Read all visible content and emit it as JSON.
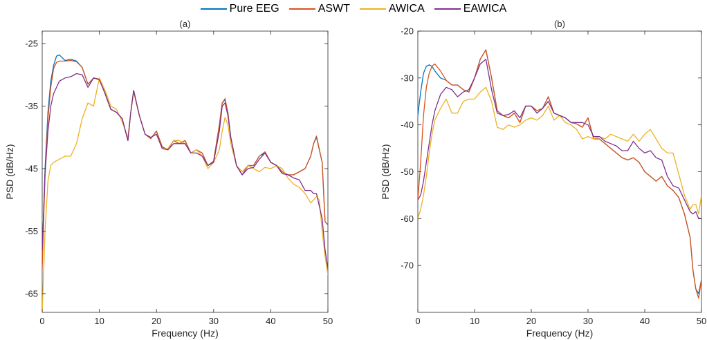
{
  "colors": {
    "pure_eeg": "#0072BD",
    "aswt": "#D95319",
    "awica": "#EDB120",
    "eawica": "#7E2F8E"
  },
  "legend": [
    "Pure EEG",
    "ASWT",
    "AWICA",
    "EAWICA"
  ],
  "chart_data": [
    {
      "type": "line",
      "title": "(a)",
      "xlabel": "Frequency (Hz)",
      "ylabel": "PSD (dB/Hz)",
      "xlim": [
        0,
        50
      ],
      "ylim": [
        -68,
        -23
      ],
      "xticks": [
        0,
        10,
        20,
        30,
        40,
        50
      ],
      "yticks": [
        -25,
        -35,
        -45,
        -55,
        -65
      ],
      "series": [
        {
          "name": "Pure EEG",
          "color_key": "pure_eeg",
          "x": [
            0,
            0.5,
            1,
            1.5,
            2,
            2.5,
            3,
            4,
            5,
            6,
            7,
            8,
            9,
            10,
            11,
            12,
            13,
            14,
            15,
            15.5,
            16,
            17,
            18,
            19,
            20,
            21,
            22,
            23,
            24,
            25,
            26,
            27,
            28,
            29,
            30,
            31,
            31.5,
            32,
            32.5,
            33,
            34,
            35,
            36,
            37,
            38,
            39,
            40,
            41,
            42,
            43,
            44,
            45,
            46,
            47,
            47.5,
            48,
            49,
            49.5,
            50
          ],
          "y": [
            -59,
            -45,
            -36,
            -31,
            -28.5,
            -27,
            -26.8,
            -27.7,
            -27.5,
            -27.8,
            -28.8,
            -31.5,
            -30.5,
            -30.7,
            -33,
            -35.5,
            -36,
            -37,
            -40.5,
            -36,
            -32.5,
            -36.5,
            -39.5,
            -40.2,
            -39,
            -41.5,
            -42,
            -40.5,
            -41,
            -40.5,
            -42.5,
            -42,
            -42.5,
            -44.5,
            -43.8,
            -38,
            -34.5,
            -34,
            -36,
            -40,
            -44.5,
            -46,
            -44.5,
            -44.5,
            -43,
            -42.5,
            -44,
            -44.5,
            -45.5,
            -46,
            -46,
            -45.5,
            -45,
            -43,
            -41,
            -40,
            -44,
            -53.5,
            -54
          ]
        },
        {
          "name": "ASWT",
          "color_key": "aswt",
          "x": [
            0,
            0.5,
            1,
            1.5,
            2,
            2.5,
            3,
            4,
            5,
            6,
            7,
            8,
            9,
            10,
            11,
            12,
            13,
            14,
            15,
            15.5,
            16,
            17,
            18,
            19,
            20,
            21,
            22,
            23,
            24,
            25,
            26,
            27,
            28,
            29,
            30,
            31,
            31.5,
            32,
            32.5,
            33,
            34,
            35,
            36,
            37,
            38,
            39,
            40,
            41,
            42,
            43,
            44,
            45,
            46,
            47,
            47.5,
            48,
            49,
            49.5,
            50
          ],
          "y": [
            -61,
            -46,
            -37,
            -32,
            -29,
            -28,
            -27.8,
            -27.8,
            -27.7,
            -27.9,
            -28.8,
            -31.5,
            -30.5,
            -30.7,
            -33,
            -35.5,
            -36,
            -37,
            -40.5,
            -36,
            -32.5,
            -36.5,
            -39.5,
            -40.2,
            -39,
            -41.5,
            -42,
            -40.5,
            -41,
            -40.5,
            -42.5,
            -42,
            -42.5,
            -44.5,
            -43.8,
            -38,
            -34.5,
            -33.8,
            -36,
            -40,
            -44.5,
            -46,
            -44.5,
            -44.5,
            -43,
            -42.3,
            -44,
            -44.5,
            -45.5,
            -46,
            -46,
            -45.5,
            -45,
            -43,
            -41,
            -39.8,
            -44,
            -53.5,
            -54
          ]
        },
        {
          "name": "AWICA",
          "color_key": "awica",
          "x": [
            0,
            0.5,
            1,
            1.5,
            2,
            3,
            4,
            5,
            6,
            7,
            8,
            9,
            10,
            11,
            12,
            13,
            14,
            15,
            15.5,
            16,
            17,
            18,
            19,
            20,
            21,
            22,
            23,
            24,
            25,
            26,
            27,
            28,
            29,
            30,
            31,
            31.5,
            32,
            32.5,
            33,
            34,
            35,
            36,
            37,
            38,
            39,
            40,
            41,
            42,
            43,
            44,
            45,
            46,
            47,
            48,
            48.5,
            49,
            49.5,
            50
          ],
          "y": [
            -68,
            -55,
            -47,
            -44.5,
            -44,
            -43.5,
            -43,
            -43,
            -41,
            -37,
            -34.5,
            -35,
            -30.5,
            -32.5,
            -35,
            -35.5,
            -37.5,
            -40,
            -36,
            -32.8,
            -36.5,
            -39.5,
            -40,
            -39.5,
            -41.8,
            -41.8,
            -40.5,
            -40.5,
            -41,
            -42.5,
            -42,
            -43,
            -45,
            -44,
            -42,
            -39,
            -36.8,
            -38,
            -41,
            -44.5,
            -45.5,
            -44.5,
            -45,
            -45.5,
            -44.8,
            -45,
            -44.5,
            -45,
            -46.5,
            -47.5,
            -48,
            -49,
            -50.5,
            -49.5,
            -50,
            -55,
            -59,
            -62
          ]
        },
        {
          "name": "EAWICA",
          "color_key": "eawica",
          "x": [
            0,
            0.5,
            1,
            1.5,
            2,
            2.5,
            3,
            4,
            5,
            6,
            7,
            8,
            9,
            10,
            11,
            12,
            13,
            14,
            15,
            15.5,
            16,
            17,
            18,
            19,
            20,
            21,
            22,
            23,
            24,
            25,
            26,
            27,
            28,
            29,
            30,
            31,
            31.5,
            32,
            32.5,
            33,
            34,
            35,
            36,
            37,
            38,
            39,
            40,
            41,
            42,
            43,
            44,
            45,
            46,
            47,
            47.5,
            48,
            49,
            49.5,
            50
          ],
          "y": [
            -58,
            -46,
            -39,
            -35,
            -33,
            -32,
            -31,
            -30.5,
            -30.3,
            -29.8,
            -30,
            -32,
            -30.5,
            -30.8,
            -33,
            -35.5,
            -36,
            -37,
            -40.5,
            -36,
            -32.5,
            -36.5,
            -39.5,
            -40,
            -39.5,
            -41.8,
            -42,
            -41,
            -41,
            -41,
            -42.5,
            -42.5,
            -43,
            -44.5,
            -44,
            -39,
            -35,
            -34.5,
            -36.5,
            -40,
            -44.5,
            -46,
            -45,
            -44.8,
            -43.5,
            -42.5,
            -44,
            -44.5,
            -45.8,
            -46,
            -46.5,
            -46.8,
            -48.5,
            -48.5,
            -49,
            -49,
            -53,
            -58,
            -61
          ]
        }
      ]
    },
    {
      "type": "line",
      "title": "(b)",
      "xlabel": "Frequency (Hz)",
      "ylabel": "PSD (dB/Hz)",
      "xlim": [
        0,
        50
      ],
      "ylim": [
        -80,
        -20
      ],
      "xticks": [
        0,
        10,
        20,
        30,
        40,
        50
      ],
      "yticks": [
        -20,
        -30,
        -40,
        -50,
        -60,
        -70
      ],
      "series": [
        {
          "name": "Pure EEG",
          "color_key": "pure_eeg",
          "x": [
            0,
            0.5,
            1,
            1.5,
            2,
            2.5,
            3,
            4,
            5,
            6,
            7,
            8,
            9,
            10,
            11,
            12,
            13,
            14,
            15,
            16,
            17,
            18,
            19,
            20,
            21,
            22,
            23,
            24,
            25,
            26,
            27,
            28,
            29,
            30,
            31,
            32,
            33,
            34,
            35,
            36,
            37,
            38,
            39,
            40,
            41,
            42,
            43,
            44,
            45,
            46,
            47,
            48,
            48.5,
            49,
            49.5,
            50
          ],
          "y": [
            -38,
            -33,
            -29,
            -27.5,
            -27.2,
            -27.5,
            -28.5,
            -30,
            -30.5,
            -31.5,
            -31.5,
            -32.5,
            -33,
            -30,
            -26,
            -24,
            -30,
            -37,
            -38,
            -38.5,
            -37.5,
            -39.5,
            -36,
            -36,
            -37,
            -36.5,
            -34,
            -37.5,
            -38,
            -38.5,
            -39.5,
            -39.8,
            -40.5,
            -38.5,
            -43,
            -43,
            -44,
            -45,
            -46,
            -47,
            -47.5,
            -47,
            -48,
            -50,
            -51,
            -52,
            -51,
            -53,
            -54,
            -55.5,
            -59,
            -64,
            -71,
            -75,
            -76,
            -73
          ]
        },
        {
          "name": "ASWT",
          "color_key": "aswt",
          "x": [
            0,
            0.5,
            1,
            1.5,
            2,
            2.5,
            3,
            4,
            5,
            6,
            7,
            8,
            9,
            10,
            11,
            12,
            13,
            14,
            15,
            16,
            17,
            18,
            19,
            20,
            21,
            22,
            23,
            24,
            25,
            26,
            27,
            28,
            29,
            30,
            31,
            32,
            33,
            34,
            35,
            36,
            37,
            38,
            39,
            40,
            41,
            42,
            43,
            44,
            45,
            46,
            47,
            48,
            48.5,
            49,
            49.5,
            50
          ],
          "y": [
            -56,
            -48,
            -38,
            -32,
            -29,
            -27.5,
            -27,
            -28.5,
            -30.5,
            -31.5,
            -31.5,
            -32.5,
            -33,
            -30,
            -26,
            -24,
            -30,
            -37,
            -38,
            -38.5,
            -37.5,
            -39.5,
            -36,
            -36,
            -37,
            -36.5,
            -34,
            -37.5,
            -38,
            -38.5,
            -39.5,
            -39.8,
            -40.5,
            -38.5,
            -43,
            -43,
            -44,
            -45,
            -46,
            -47,
            -47.5,
            -47,
            -48,
            -50,
            -51,
            -52,
            -51,
            -53,
            -54,
            -55.5,
            -59,
            -64,
            -71,
            -75,
            -77,
            -73
          ]
        },
        {
          "name": "AWICA",
          "color_key": "awica",
          "x": [
            0,
            0.5,
            1,
            1.5,
            2,
            2.5,
            3,
            4,
            5,
            6,
            7,
            8,
            9,
            10,
            11,
            12,
            13,
            14,
            15,
            16,
            17,
            18,
            19,
            20,
            21,
            22,
            23,
            24,
            25,
            26,
            27,
            28,
            29,
            30,
            31,
            32,
            33,
            34,
            35,
            36,
            37,
            38,
            39,
            40,
            41,
            42,
            43,
            44,
            45,
            46,
            47,
            48,
            48.5,
            49,
            49.5,
            50
          ],
          "y": [
            -60,
            -58,
            -55,
            -51,
            -46,
            -42,
            -39,
            -36.5,
            -34.5,
            -37.5,
            -37.5,
            -35,
            -34.5,
            -34.5,
            -33,
            -32,
            -35,
            -40.5,
            -41,
            -40,
            -40.5,
            -40,
            -39,
            -38.5,
            -39,
            -38,
            -36,
            -39,
            -38,
            -39.5,
            -40,
            -41,
            -43,
            -42.5,
            -43,
            -42.5,
            -43,
            -42,
            -42.5,
            -43,
            -43.5,
            -42,
            -43.5,
            -42,
            -41,
            -43,
            -45,
            -46,
            -46,
            -50.5,
            -55,
            -58,
            -57,
            -57,
            -59,
            -55
          ]
        },
        {
          "name": "EAWICA",
          "color_key": "eawica",
          "x": [
            0,
            0.5,
            1,
            1.5,
            2,
            2.5,
            3,
            4,
            5,
            6,
            7,
            8,
            9,
            10,
            11,
            12,
            13,
            14,
            15,
            16,
            17,
            18,
            19,
            20,
            21,
            22,
            23,
            24,
            25,
            26,
            27,
            28,
            29,
            30,
            31,
            32,
            33,
            34,
            35,
            36,
            37,
            38,
            39,
            40,
            41,
            42,
            43,
            44,
            45,
            46,
            47,
            48,
            48.5,
            49,
            49.5,
            50
          ],
          "y": [
            -56,
            -55,
            -52,
            -48,
            -44,
            -40,
            -37,
            -33.5,
            -32,
            -32.5,
            -34,
            -33,
            -32.5,
            -30,
            -27,
            -26,
            -32.5,
            -37.5,
            -38,
            -37.8,
            -37,
            -38.5,
            -36,
            -36,
            -37.5,
            -36.5,
            -35,
            -37.5,
            -38,
            -38.5,
            -39.5,
            -39.5,
            -39.5,
            -40,
            -42.5,
            -42.5,
            -43.5,
            -44,
            -44.5,
            -45.5,
            -45.5,
            -43.5,
            -45,
            -46,
            -45.5,
            -47,
            -47.5,
            -51,
            -53,
            -53.5,
            -56,
            -58.5,
            -59,
            -58.5,
            -60,
            -60
          ]
        }
      ]
    }
  ]
}
